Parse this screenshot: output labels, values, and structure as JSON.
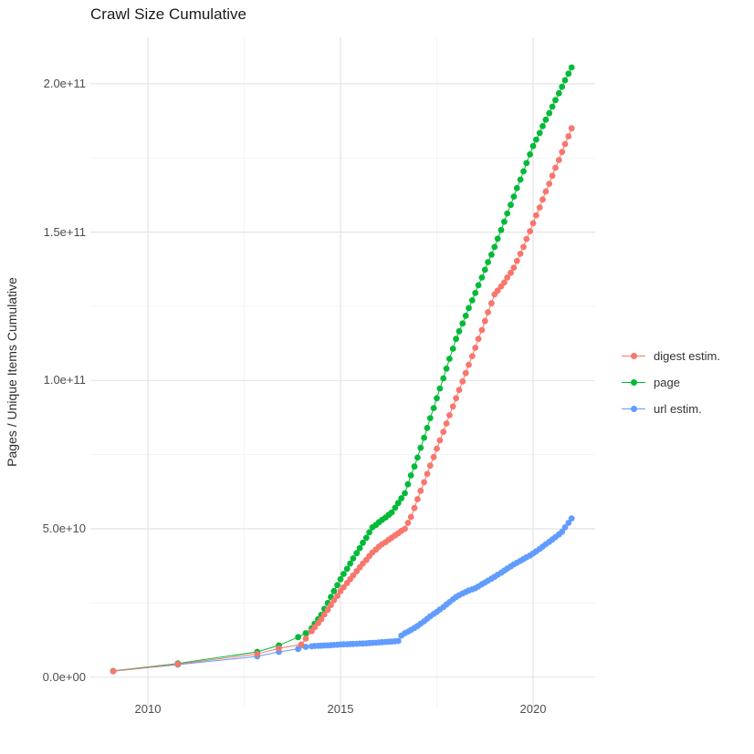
{
  "chart_data": {
    "type": "scatter",
    "title": "Crawl Size Cumulative",
    "xlabel": "",
    "ylabel": "Pages / Unique Items Cumulative",
    "value_unit": "1e9",
    "xlim": [
      2008.7,
      2021.6
    ],
    "ylim_label": [
      0,
      200000000000.0
    ],
    "grid": true,
    "legend_position": "right",
    "x_axis": {
      "tick_labels": [
        "2010",
        "2015",
        "2020"
      ],
      "tick_values": [
        2010,
        2015,
        2020
      ],
      "minor_tick_values": [
        2012.5,
        2017.5
      ]
    },
    "y_axis": {
      "tick_labels": [
        "0.0e+00",
        "5.0e+10",
        "1.0e+11",
        "1.5e+11",
        "2.0e+11"
      ],
      "tick_values_e9": [
        0,
        50,
        100,
        150,
        200
      ],
      "minor_tick_values_e9": [
        25,
        75,
        125,
        175
      ]
    },
    "colors": {
      "digest": "#F8766D",
      "page": "#00BA38",
      "url": "#619CFF",
      "grid_major": "#e4e4e4",
      "grid_minor": "#f1f1f1"
    },
    "series": [
      {
        "name": "url estim.",
        "key": "url",
        "color": "#619CFF",
        "points": [
          [
            2009.1,
            2.0
          ],
          [
            2010.78,
            4.2
          ],
          [
            2012.84,
            7.0
          ],
          [
            2013.4,
            8.5
          ],
          [
            2013.9,
            9.5
          ],
          [
            2014.1,
            10.2
          ],
          [
            2014.25,
            10.4
          ],
          [
            2014.33,
            10.5
          ],
          [
            2014.42,
            10.55
          ],
          [
            2014.5,
            10.6
          ],
          [
            2014.58,
            10.65
          ],
          [
            2014.67,
            10.7
          ],
          [
            2014.75,
            10.8
          ],
          [
            2014.83,
            10.85
          ],
          [
            2014.92,
            10.9
          ],
          [
            2015.0,
            11.0
          ],
          [
            2015.08,
            11.05
          ],
          [
            2015.17,
            11.1
          ],
          [
            2015.25,
            11.15
          ],
          [
            2015.33,
            11.2
          ],
          [
            2015.42,
            11.25
          ],
          [
            2015.5,
            11.3
          ],
          [
            2015.58,
            11.35
          ],
          [
            2015.67,
            11.4
          ],
          [
            2015.75,
            11.5
          ],
          [
            2015.83,
            11.55
          ],
          [
            2015.92,
            11.6
          ],
          [
            2016.0,
            11.7
          ],
          [
            2016.08,
            11.8
          ],
          [
            2016.17,
            11.85
          ],
          [
            2016.25,
            11.95
          ],
          [
            2016.33,
            12.0
          ],
          [
            2016.42,
            12.1
          ],
          [
            2016.5,
            12.2
          ],
          [
            2016.58,
            14.0
          ],
          [
            2016.67,
            14.8
          ],
          [
            2016.75,
            15.3
          ],
          [
            2016.83,
            15.9
          ],
          [
            2016.92,
            16.6
          ],
          [
            2017.0,
            17.2
          ],
          [
            2017.08,
            18.0
          ],
          [
            2017.17,
            18.8
          ],
          [
            2017.25,
            19.7
          ],
          [
            2017.33,
            20.5
          ],
          [
            2017.42,
            21.3
          ],
          [
            2017.5,
            22.0
          ],
          [
            2017.58,
            22.8
          ],
          [
            2017.67,
            23.6
          ],
          [
            2017.75,
            24.5
          ],
          [
            2017.83,
            25.3
          ],
          [
            2017.92,
            26.2
          ],
          [
            2018.0,
            27.0
          ],
          [
            2018.08,
            27.6
          ],
          [
            2018.17,
            28.2
          ],
          [
            2018.25,
            28.7
          ],
          [
            2018.33,
            29.2
          ],
          [
            2018.42,
            29.6
          ],
          [
            2018.5,
            30.0
          ],
          [
            2018.58,
            30.6
          ],
          [
            2018.67,
            31.3
          ],
          [
            2018.75,
            31.9
          ],
          [
            2018.83,
            32.5
          ],
          [
            2018.92,
            33.2
          ],
          [
            2019.0,
            33.8
          ],
          [
            2019.08,
            34.5
          ],
          [
            2019.17,
            35.2
          ],
          [
            2019.25,
            35.9
          ],
          [
            2019.33,
            36.6
          ],
          [
            2019.42,
            37.3
          ],
          [
            2019.5,
            38.0
          ],
          [
            2019.58,
            38.6
          ],
          [
            2019.67,
            39.2
          ],
          [
            2019.75,
            39.8
          ],
          [
            2019.83,
            40.4
          ],
          [
            2019.92,
            41.0
          ],
          [
            2020.0,
            41.7
          ],
          [
            2020.08,
            42.4
          ],
          [
            2020.17,
            43.2
          ],
          [
            2020.25,
            44.0
          ],
          [
            2020.33,
            44.8
          ],
          [
            2020.42,
            45.6
          ],
          [
            2020.5,
            46.4
          ],
          [
            2020.58,
            47.2
          ],
          [
            2020.67,
            48.1
          ],
          [
            2020.75,
            49.0
          ],
          [
            2020.83,
            50.5
          ],
          [
            2020.92,
            52.0
          ],
          [
            2021.0,
            53.5
          ]
        ]
      },
      {
        "name": "page",
        "key": "page",
        "color": "#00BA38",
        "points": [
          [
            2009.1,
            2.1
          ],
          [
            2010.78,
            4.6
          ],
          [
            2012.84,
            8.5
          ],
          [
            2013.4,
            10.7
          ],
          [
            2013.9,
            13.5
          ],
          [
            2014.1,
            14.8
          ],
          [
            2014.25,
            16.5
          ],
          [
            2014.33,
            18.0
          ],
          [
            2014.42,
            19.5
          ],
          [
            2014.5,
            21.0
          ],
          [
            2014.58,
            23.0
          ],
          [
            2014.67,
            25.0
          ],
          [
            2014.75,
            27.0
          ],
          [
            2014.83,
            29.0
          ],
          [
            2014.92,
            31.0
          ],
          [
            2015.0,
            33.0
          ],
          [
            2015.08,
            34.8
          ],
          [
            2015.17,
            36.5
          ],
          [
            2015.25,
            38.3
          ],
          [
            2015.33,
            40.0
          ],
          [
            2015.42,
            41.8
          ],
          [
            2015.5,
            43.5
          ],
          [
            2015.58,
            45.3
          ],
          [
            2015.67,
            47.0
          ],
          [
            2015.75,
            48.8
          ],
          [
            2015.83,
            50.5
          ],
          [
            2015.92,
            51.3
          ],
          [
            2016.0,
            52.2
          ],
          [
            2016.08,
            53.0
          ],
          [
            2016.17,
            53.8
          ],
          [
            2016.25,
            54.7
          ],
          [
            2016.33,
            55.5
          ],
          [
            2016.42,
            57.1
          ],
          [
            2016.5,
            58.7
          ],
          [
            2016.58,
            60.3
          ],
          [
            2016.67,
            62.0
          ],
          [
            2016.75,
            65.0
          ],
          [
            2016.83,
            68.0
          ],
          [
            2016.92,
            71.0
          ],
          [
            2017.0,
            74.0
          ],
          [
            2017.08,
            77.3
          ],
          [
            2017.17,
            80.7
          ],
          [
            2017.25,
            84.0
          ],
          [
            2017.33,
            87.3
          ],
          [
            2017.42,
            90.7
          ],
          [
            2017.5,
            94.0
          ],
          [
            2017.58,
            97.3
          ],
          [
            2017.67,
            100.7
          ],
          [
            2017.75,
            104.0
          ],
          [
            2017.83,
            107.3
          ],
          [
            2017.92,
            110.7
          ],
          [
            2018.0,
            114.0
          ],
          [
            2018.08,
            116.6
          ],
          [
            2018.17,
            119.2
          ],
          [
            2018.25,
            121.8
          ],
          [
            2018.33,
            124.4
          ],
          [
            2018.42,
            127.0
          ],
          [
            2018.5,
            129.5
          ],
          [
            2018.58,
            132.1
          ],
          [
            2018.67,
            134.7
          ],
          [
            2018.75,
            137.3
          ],
          [
            2018.83,
            139.9
          ],
          [
            2018.92,
            142.4
          ],
          [
            2019.0,
            145.0
          ],
          [
            2019.08,
            147.8
          ],
          [
            2019.17,
            150.7
          ],
          [
            2019.25,
            153.5
          ],
          [
            2019.33,
            156.3
          ],
          [
            2019.42,
            159.2
          ],
          [
            2019.5,
            162.0
          ],
          [
            2019.58,
            164.8
          ],
          [
            2019.67,
            167.7
          ],
          [
            2019.75,
            170.5
          ],
          [
            2019.83,
            173.3
          ],
          [
            2019.92,
            176.2
          ],
          [
            2020.0,
            179.0
          ],
          [
            2020.08,
            181.2
          ],
          [
            2020.17,
            183.4
          ],
          [
            2020.25,
            185.7
          ],
          [
            2020.33,
            187.9
          ],
          [
            2020.42,
            190.1
          ],
          [
            2020.5,
            192.3
          ],
          [
            2020.58,
            194.5
          ],
          [
            2020.67,
            196.8
          ],
          [
            2020.75,
            199.0
          ],
          [
            2020.83,
            201.2
          ],
          [
            2020.92,
            203.4
          ],
          [
            2021.0,
            205.5
          ]
        ]
      },
      {
        "name": "digest estim.",
        "key": "digest",
        "color": "#F8766D",
        "points": [
          [
            2009.1,
            2.0
          ],
          [
            2010.78,
            4.4
          ],
          [
            2012.84,
            7.8
          ],
          [
            2013.4,
            9.7
          ],
          [
            2013.98,
            11.0
          ],
          [
            2014.1,
            13.0
          ],
          [
            2014.25,
            15.5
          ],
          [
            2014.33,
            16.8
          ],
          [
            2014.42,
            18.2
          ],
          [
            2014.5,
            19.5
          ],
          [
            2014.58,
            21.1
          ],
          [
            2014.67,
            22.7
          ],
          [
            2014.75,
            24.3
          ],
          [
            2014.83,
            25.9
          ],
          [
            2014.92,
            27.4
          ],
          [
            2015.0,
            29.0
          ],
          [
            2015.08,
            30.3
          ],
          [
            2015.17,
            31.7
          ],
          [
            2015.25,
            33.0
          ],
          [
            2015.33,
            34.3
          ],
          [
            2015.42,
            35.7
          ],
          [
            2015.5,
            37.0
          ],
          [
            2015.58,
            38.3
          ],
          [
            2015.67,
            39.5
          ],
          [
            2015.75,
            40.8
          ],
          [
            2015.83,
            42.0
          ],
          [
            2015.92,
            43.0
          ],
          [
            2016.0,
            44.0
          ],
          [
            2016.08,
            44.8
          ],
          [
            2016.17,
            45.5
          ],
          [
            2016.25,
            46.3
          ],
          [
            2016.33,
            47.0
          ],
          [
            2016.42,
            47.8
          ],
          [
            2016.5,
            48.5
          ],
          [
            2016.58,
            49.3
          ],
          [
            2016.67,
            50.0
          ],
          [
            2016.75,
            52.0
          ],
          [
            2016.83,
            54.0
          ],
          [
            2016.92,
            57.0
          ],
          [
            2017.0,
            60.0
          ],
          [
            2017.08,
            62.8
          ],
          [
            2017.17,
            65.7
          ],
          [
            2017.25,
            68.5
          ],
          [
            2017.33,
            71.3
          ],
          [
            2017.42,
            74.2
          ],
          [
            2017.5,
            77.0
          ],
          [
            2017.58,
            79.8
          ],
          [
            2017.67,
            82.7
          ],
          [
            2017.75,
            85.5
          ],
          [
            2017.83,
            88.3
          ],
          [
            2017.92,
            91.2
          ],
          [
            2018.0,
            94.0
          ],
          [
            2018.08,
            96.8
          ],
          [
            2018.17,
            99.7
          ],
          [
            2018.25,
            102.5
          ],
          [
            2018.33,
            105.3
          ],
          [
            2018.42,
            108.2
          ],
          [
            2018.5,
            111.0
          ],
          [
            2018.58,
            114.0
          ],
          [
            2018.67,
            117.0
          ],
          [
            2018.75,
            120.0
          ],
          [
            2018.83,
            123.0
          ],
          [
            2018.92,
            126.0
          ],
          [
            2019.0,
            129.0
          ],
          [
            2019.08,
            130.3
          ],
          [
            2019.17,
            131.7
          ],
          [
            2019.25,
            133.0
          ],
          [
            2019.33,
            134.7
          ],
          [
            2019.42,
            136.3
          ],
          [
            2019.5,
            138.0
          ],
          [
            2019.58,
            140.3
          ],
          [
            2019.67,
            142.7
          ],
          [
            2019.75,
            145.0
          ],
          [
            2019.83,
            147.7
          ],
          [
            2019.92,
            150.3
          ],
          [
            2020.0,
            153.0
          ],
          [
            2020.08,
            155.7
          ],
          [
            2020.17,
            158.3
          ],
          [
            2020.25,
            161.0
          ],
          [
            2020.33,
            163.7
          ],
          [
            2020.42,
            166.3
          ],
          [
            2020.5,
            169.0
          ],
          [
            2020.58,
            171.7
          ],
          [
            2020.67,
            174.3
          ],
          [
            2020.75,
            177.0
          ],
          [
            2020.83,
            179.7
          ],
          [
            2020.92,
            182.3
          ],
          [
            2021.0,
            185.0
          ]
        ]
      }
    ]
  }
}
